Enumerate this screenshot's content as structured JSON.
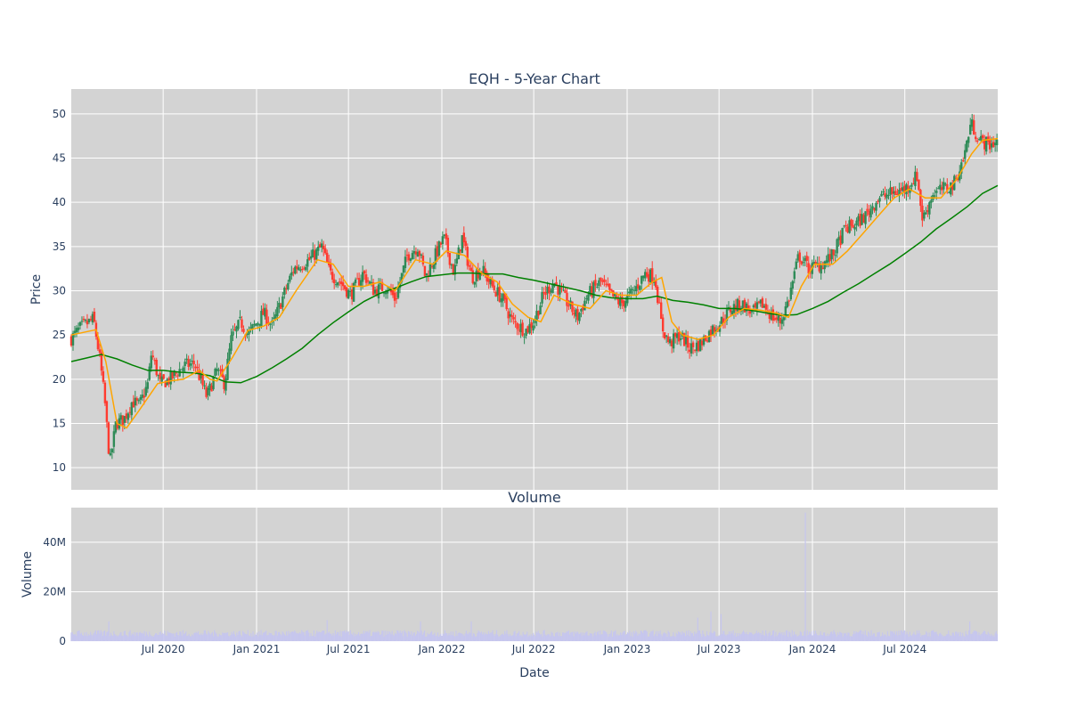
{
  "chart_data": [
    {
      "type": "candlestick",
      "title": "EQH - 5-Year Chart",
      "xlabel": "",
      "ylabel": "Price",
      "ylim": [
        7.5,
        52.8
      ],
      "yticks": [
        10,
        15,
        20,
        25,
        30,
        35,
        40,
        45,
        50
      ],
      "grid": true,
      "legend": "none",
      "colors": {
        "background": "#d3d3d3",
        "grid": "#ffffff",
        "up": "#2e8b57",
        "down": "#ff3b30",
        "ma_short": "#ffa500",
        "ma_long": "#008000",
        "text": "#2a3f5f"
      },
      "price_path": [
        [
          "2020-01-02",
          24.6
        ],
        [
          "2020-01-20",
          25.8
        ],
        [
          "2020-02-15",
          26.8
        ],
        [
          "2020-02-28",
          22.0
        ],
        [
          "2020-03-08",
          17.5
        ],
        [
          "2020-03-18",
          10.5
        ],
        [
          "2020-03-30",
          15.0
        ],
        [
          "2020-04-15",
          15.5
        ],
        [
          "2020-05-01",
          17.5
        ],
        [
          "2020-05-15",
          17.0
        ],
        [
          "2020-06-01",
          19.5
        ],
        [
          "2020-06-08",
          23.0
        ],
        [
          "2020-06-25",
          19.5
        ],
        [
          "2020-07-15",
          20.0
        ],
        [
          "2020-08-10",
          21.5
        ],
        [
          "2020-09-01",
          21.8
        ],
        [
          "2020-09-25",
          18.0
        ],
        [
          "2020-10-15",
          21.0
        ],
        [
          "2020-10-30",
          19.5
        ],
        [
          "2020-11-12",
          24.5
        ],
        [
          "2020-12-01",
          26.5
        ],
        [
          "2020-12-15",
          25.0
        ],
        [
          "2021-01-15",
          27.5
        ],
        [
          "2021-02-01",
          26.0
        ],
        [
          "2021-02-20",
          29.0
        ],
        [
          "2021-03-15",
          32.5
        ],
        [
          "2021-04-15",
          33.5
        ],
        [
          "2021-05-10",
          35.0
        ],
        [
          "2021-05-25",
          32.0
        ],
        [
          "2021-06-15",
          31.0
        ],
        [
          "2021-07-05",
          29.5
        ],
        [
          "2021-07-30",
          32.0
        ],
        [
          "2021-08-20",
          30.0
        ],
        [
          "2021-09-15",
          30.5
        ],
        [
          "2021-10-01",
          29.0
        ],
        [
          "2021-10-25",
          34.0
        ],
        [
          "2021-11-15",
          35.0
        ],
        [
          "2021-11-30",
          31.5
        ],
        [
          "2021-12-15",
          33.5
        ],
        [
          "2022-01-05",
          36.0
        ],
        [
          "2022-01-25",
          32.0
        ],
        [
          "2022-02-10",
          36.0
        ],
        [
          "2022-03-01",
          31.5
        ],
        [
          "2022-03-20",
          32.5
        ],
        [
          "2022-04-10",
          30.5
        ],
        [
          "2022-05-01",
          29.0
        ],
        [
          "2022-05-20",
          26.5
        ],
        [
          "2022-06-15",
          25.5
        ],
        [
          "2022-07-01",
          26.5
        ],
        [
          "2022-07-20",
          29.5
        ],
        [
          "2022-08-10",
          31.0
        ],
        [
          "2022-09-01",
          29.0
        ],
        [
          "2022-09-25",
          27.0
        ],
        [
          "2022-10-15",
          29.5
        ],
        [
          "2022-11-10",
          31.0
        ],
        [
          "2022-11-30",
          29.5
        ],
        [
          "2022-12-20",
          28.5
        ],
        [
          "2023-01-15",
          30.0
        ],
        [
          "2023-02-05",
          32.0
        ],
        [
          "2023-02-25",
          31.5
        ],
        [
          "2023-03-10",
          26.0
        ],
        [
          "2023-03-25",
          24.0
        ],
        [
          "2023-04-15",
          25.0
        ],
        [
          "2023-05-05",
          23.5
        ],
        [
          "2023-05-25",
          24.0
        ],
        [
          "2023-06-15",
          25.5
        ],
        [
          "2023-07-05",
          26.5
        ],
        [
          "2023-07-25",
          28.0
        ],
        [
          "2023-08-15",
          28.5
        ],
        [
          "2023-09-05",
          27.5
        ],
        [
          "2023-09-25",
          28.5
        ],
        [
          "2023-10-15",
          27.0
        ],
        [
          "2023-10-30",
          26.5
        ],
        [
          "2023-11-15",
          29.0
        ],
        [
          "2023-12-05",
          34.0
        ],
        [
          "2023-12-25",
          32.5
        ],
        [
          "2024-01-20",
          33.0
        ],
        [
          "2024-02-10",
          34.0
        ],
        [
          "2024-03-05",
          37.0
        ],
        [
          "2024-03-25",
          37.5
        ],
        [
          "2024-04-15",
          38.5
        ],
        [
          "2024-05-10",
          40.5
        ],
        [
          "2024-06-05",
          41.0
        ],
        [
          "2024-07-01",
          41.5
        ],
        [
          "2024-07-25",
          43.0
        ],
        [
          "2024-08-05",
          38.0
        ],
        [
          "2024-08-25",
          41.0
        ],
        [
          "2024-09-15",
          41.5
        ],
        [
          "2024-10-05",
          42.0
        ],
        [
          "2024-10-25",
          45.0
        ],
        [
          "2024-11-08",
          49.0
        ],
        [
          "2024-11-25",
          47.0
        ],
        [
          "2024-12-15",
          46.5
        ],
        [
          "2024-12-31",
          47.0
        ]
      ],
      "ma_short": [
        [
          "2020-01-02",
          25.0
        ],
        [
          "2020-02-20",
          25.6
        ],
        [
          "2020-03-10",
          22.0
        ],
        [
          "2020-04-01",
          15.0
        ],
        [
          "2020-04-20",
          14.5
        ],
        [
          "2020-05-15",
          16.5
        ],
        [
          "2020-06-20",
          19.5
        ],
        [
          "2020-07-15",
          19.8
        ],
        [
          "2020-08-10",
          20.0
        ],
        [
          "2020-09-10",
          21.0
        ],
        [
          "2020-10-01",
          20.0
        ],
        [
          "2020-10-15",
          19.8
        ],
        [
          "2020-11-15",
          22.5
        ],
        [
          "2020-12-15",
          25.5
        ],
        [
          "2021-01-15",
          26.0
        ],
        [
          "2021-02-15",
          27.0
        ],
        [
          "2021-03-20",
          30.0
        ],
        [
          "2021-05-01",
          33.5
        ],
        [
          "2021-06-01",
          33.0
        ],
        [
          "2021-07-01",
          30.5
        ],
        [
          "2021-08-01",
          30.5
        ],
        [
          "2021-09-01",
          31.0
        ],
        [
          "2021-10-01",
          30.0
        ],
        [
          "2021-11-10",
          33.5
        ],
        [
          "2021-12-15",
          33.0
        ],
        [
          "2022-01-10",
          34.5
        ],
        [
          "2022-02-15",
          34.0
        ],
        [
          "2022-03-20",
          32.0
        ],
        [
          "2022-04-20",
          31.0
        ],
        [
          "2022-05-20",
          28.5
        ],
        [
          "2022-06-20",
          27.0
        ],
        [
          "2022-07-15",
          26.5
        ],
        [
          "2022-08-10",
          29.5
        ],
        [
          "2022-09-15",
          28.5
        ],
        [
          "2022-10-20",
          28.0
        ],
        [
          "2022-11-20",
          30.0
        ],
        [
          "2022-12-20",
          29.5
        ],
        [
          "2023-01-20",
          29.5
        ],
        [
          "2023-02-20",
          31.0
        ],
        [
          "2023-03-10",
          31.5
        ],
        [
          "2023-03-30",
          26.5
        ],
        [
          "2023-04-20",
          25.0
        ],
        [
          "2023-05-20",
          24.5
        ],
        [
          "2023-06-20",
          25.0
        ],
        [
          "2023-07-20",
          27.0
        ],
        [
          "2023-08-20",
          28.0
        ],
        [
          "2023-09-20",
          27.8
        ],
        [
          "2023-10-20",
          27.5
        ],
        [
          "2023-11-15",
          27.0
        ],
        [
          "2023-12-10",
          30.5
        ],
        [
          "2024-01-05",
          33.0
        ],
        [
          "2024-02-10",
          33.0
        ],
        [
          "2024-03-10",
          34.5
        ],
        [
          "2024-04-10",
          36.5
        ],
        [
          "2024-05-10",
          38.5
        ],
        [
          "2024-06-10",
          40.5
        ],
        [
          "2024-07-10",
          41.5
        ],
        [
          "2024-08-10",
          40.5
        ],
        [
          "2024-09-10",
          40.5
        ],
        [
          "2024-10-10",
          42.5
        ],
        [
          "2024-11-10",
          45.5
        ],
        [
          "2024-12-01",
          47.0
        ],
        [
          "2024-12-31",
          47.2
        ]
      ],
      "ma_long": [
        [
          "2020-01-02",
          22.0
        ],
        [
          "2020-02-01",
          22.4
        ],
        [
          "2020-03-01",
          22.8
        ],
        [
          "2020-04-01",
          22.3
        ],
        [
          "2020-05-01",
          21.6
        ],
        [
          "2020-06-01",
          21.0
        ],
        [
          "2020-07-01",
          21.0
        ],
        [
          "2020-08-01",
          20.8
        ],
        [
          "2020-09-01",
          20.7
        ],
        [
          "2020-10-01",
          20.4
        ],
        [
          "2020-11-01",
          19.7
        ],
        [
          "2020-12-01",
          19.6
        ],
        [
          "2021-01-01",
          20.3
        ],
        [
          "2021-02-01",
          21.3
        ],
        [
          "2021-03-01",
          22.3
        ],
        [
          "2021-04-01",
          23.5
        ],
        [
          "2021-05-01",
          25.0
        ],
        [
          "2021-06-01",
          26.4
        ],
        [
          "2021-07-01",
          27.6
        ],
        [
          "2021-08-01",
          28.8
        ],
        [
          "2021-09-01",
          29.7
        ],
        [
          "2021-10-01",
          30.3
        ],
        [
          "2021-11-01",
          31.0
        ],
        [
          "2021-12-01",
          31.6
        ],
        [
          "2022-01-01",
          31.8
        ],
        [
          "2022-02-01",
          32.0
        ],
        [
          "2022-03-01",
          32.0
        ],
        [
          "2022-04-01",
          31.9
        ],
        [
          "2022-05-01",
          31.9
        ],
        [
          "2022-06-01",
          31.5
        ],
        [
          "2022-07-01",
          31.2
        ],
        [
          "2022-08-01",
          30.8
        ],
        [
          "2022-09-01",
          30.4
        ],
        [
          "2022-10-01",
          30.0
        ],
        [
          "2022-11-01",
          29.5
        ],
        [
          "2022-12-01",
          29.2
        ],
        [
          "2023-01-01",
          29.1
        ],
        [
          "2023-02-01",
          29.1
        ],
        [
          "2023-03-01",
          29.4
        ],
        [
          "2023-04-01",
          28.9
        ],
        [
          "2023-05-01",
          28.7
        ],
        [
          "2023-06-01",
          28.4
        ],
        [
          "2023-07-01",
          28.0
        ],
        [
          "2023-08-01",
          28.0
        ],
        [
          "2023-09-01",
          27.8
        ],
        [
          "2023-10-01",
          27.5
        ],
        [
          "2023-11-01",
          27.2
        ],
        [
          "2023-12-01",
          27.3
        ],
        [
          "2024-01-01",
          28.0
        ],
        [
          "2024-02-01",
          28.8
        ],
        [
          "2024-03-01",
          29.8
        ],
        [
          "2024-04-01",
          30.8
        ],
        [
          "2024-05-01",
          31.9
        ],
        [
          "2024-06-01",
          33.0
        ],
        [
          "2024-07-01",
          34.2
        ],
        [
          "2024-08-01",
          35.5
        ],
        [
          "2024-09-01",
          37.0
        ],
        [
          "2024-10-01",
          38.2
        ],
        [
          "2024-11-01",
          39.5
        ],
        [
          "2024-12-01",
          41.0
        ],
        [
          "2024-12-31",
          41.9
        ]
      ]
    },
    {
      "type": "bar",
      "title": "Volume",
      "xlabel": "Date",
      "ylabel": "Volume",
      "ylim": [
        0,
        54000000
      ],
      "yticks": [
        0,
        20000000,
        40000000
      ],
      "ytick_labels": [
        "0",
        "20M",
        "40M"
      ],
      "xlim": [
        "2020-01-02",
        "2024-12-31"
      ],
      "xticks": [
        "2020-07-01",
        "2021-01-01",
        "2021-07-01",
        "2022-01-01",
        "2022-07-01",
        "2023-01-01",
        "2023-07-01",
        "2024-01-01",
        "2024-07-01"
      ],
      "xtick_labels": [
        "Jul 2020",
        "Jan 2021",
        "Jul 2021",
        "Jan 2022",
        "Jul 2022",
        "Jan 2023",
        "Jul 2023",
        "Jan 2024",
        "Jul 2024"
      ],
      "grid": true,
      "colors": {
        "bar": "#c6c6ee"
      },
      "volume_base": 3000000,
      "volume_spikes": [
        [
          "2020-03-16",
          8000000
        ],
        [
          "2020-03-25",
          7500000
        ],
        [
          "2020-05-10",
          6000000
        ],
        [
          "2020-06-05",
          5500000
        ],
        [
          "2021-05-20",
          8500000
        ],
        [
          "2021-11-20",
          8000000
        ],
        [
          "2022-02-15",
          7500000
        ],
        [
          "2022-02-28",
          8000000
        ],
        [
          "2023-03-10",
          15000000
        ],
        [
          "2023-03-20",
          9000000
        ],
        [
          "2023-05-20",
          9500000
        ],
        [
          "2023-06-15",
          12000000
        ],
        [
          "2023-07-05",
          11000000
        ],
        [
          "2023-12-05",
          8000000
        ],
        [
          "2023-12-18",
          52000000
        ],
        [
          "2024-08-05",
          7000000
        ],
        [
          "2024-11-06",
          8000000
        ]
      ]
    }
  ]
}
